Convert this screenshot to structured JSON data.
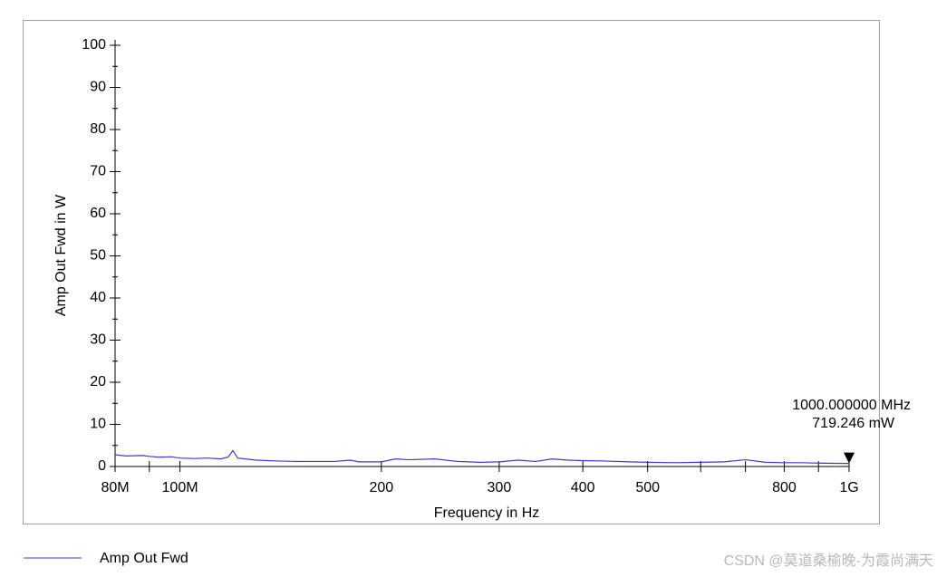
{
  "chart_data": {
    "type": "line",
    "log_x": true,
    "xlabel": "Frequency in Hz",
    "ylabel": "Amp Out Fwd in W",
    "x": [
      80000000,
      83000000,
      88000000,
      90000000,
      93000000,
      97000000,
      100000000,
      105000000,
      110000000,
      115000000,
      118000000,
      120000000,
      122000000,
      130000000,
      140000000,
      150000000,
      170000000,
      180000000,
      185000000,
      200000000,
      210000000,
      220000000,
      240000000,
      260000000,
      280000000,
      300000000,
      320000000,
      340000000,
      360000000,
      380000000,
      400000000,
      430000000,
      470000000,
      500000000,
      550000000,
      600000000,
      650000000,
      700000000,
      750000000,
      800000000,
      850000000,
      900000000,
      950000000,
      1000000000
    ],
    "series": [
      {
        "name": "Amp Out Fwd",
        "color": "#3b3bd9",
        "values": [
          2.8,
          2.5,
          2.6,
          2.4,
          2.2,
          2.3,
          2.0,
          1.9,
          2.0,
          1.8,
          2.2,
          3.8,
          2.0,
          1.5,
          1.3,
          1.2,
          1.2,
          1.5,
          1.1,
          1.1,
          1.8,
          1.6,
          1.8,
          1.2,
          1.0,
          1.1,
          1.5,
          1.2,
          1.8,
          1.5,
          1.4,
          1.3,
          1.1,
          1.0,
          0.9,
          1.0,
          1.1,
          1.6,
          1.0,
          0.9,
          0.9,
          0.8,
          0.75,
          0.719246
        ]
      }
    ],
    "xlim": [
      80000000,
      1000000000
    ],
    "xticks": [
      {
        "value": 80000000,
        "label": "80M"
      },
      {
        "value": 100000000,
        "label": "100M"
      },
      {
        "value": 200000000,
        "label": "200"
      },
      {
        "value": 300000000,
        "label": "300"
      },
      {
        "value": 400000000,
        "label": "400"
      },
      {
        "value": 500000000,
        "label": "500"
      },
      {
        "value": 800000000,
        "label": "800"
      },
      {
        "value": 1000000000,
        "label": "1G"
      }
    ],
    "xminorticks": [
      90000000,
      600000000,
      700000000,
      900000000
    ],
    "ylim": [
      0,
      100
    ],
    "yticks": [
      0,
      10,
      20,
      30,
      40,
      50,
      60,
      70,
      80,
      90,
      100
    ],
    "yminorticks": [
      5,
      15,
      25,
      35,
      45,
      55,
      65,
      75,
      85,
      95
    ],
    "marker": {
      "x": 1000000000,
      "y": 0.719246,
      "x_label": "1000.000000 MHz",
      "y_label": "719.246 mW"
    },
    "watermark": "CSDN @莫道桑榆晚-为霞尚满天"
  }
}
